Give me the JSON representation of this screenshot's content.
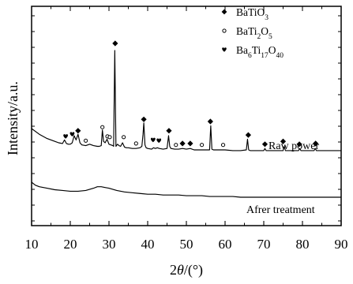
{
  "chart_data": {
    "type": "line",
    "xlabel_parts": {
      "main": "2",
      "theta": "θ",
      "unit": "/(°)"
    },
    "ylabel": "Intensity/a.u.",
    "xlim": [
      10,
      90
    ],
    "xticks": [
      10,
      20,
      30,
      40,
      50,
      60,
      70,
      80,
      90
    ],
    "series": [
      {
        "name": "Raw power",
        "x": [
          10,
          12,
          14,
          16,
          17,
          18,
          18.5,
          19,
          19.5,
          20,
          20.5,
          21,
          21.5,
          22,
          22.5,
          23,
          24,
          25,
          26,
          27,
          27.5,
          28,
          28.3,
          28.6,
          29,
          29.5,
          30,
          30.5,
          31,
          31.2,
          31.5,
          31.8,
          32.2,
          32.6,
          33,
          33.5,
          34,
          34.5,
          35,
          36,
          37,
          38,
          38.5,
          38.8,
          39,
          39.3,
          39.6,
          40,
          41,
          41.5,
          42,
          42.5,
          43,
          44,
          45,
          45.4,
          45.7,
          46,
          47,
          48,
          49,
          50,
          51,
          52,
          54,
          55,
          56,
          56.3,
          56.6,
          57,
          58,
          60,
          62,
          64,
          65.5,
          65.8,
          66.1,
          66.5,
          68,
          70,
          70.3,
          70.6,
          72,
          74,
          75,
          75.3,
          75.6,
          77,
          79,
          79.3,
          79.6,
          81,
          83,
          83.3,
          83.6,
          85,
          87,
          90
        ],
        "values": [
          100,
          92,
          86,
          82,
          80,
          79,
          84,
          79,
          78,
          78,
          80,
          90,
          84,
          92,
          80,
          77,
          76,
          78,
          76,
          75,
          75,
          76,
          98,
          82,
          80,
          85,
          78,
          77,
          76,
          75,
          210,
          75,
          78,
          76,
          75,
          80,
          74,
          73,
          73,
          72,
          72,
          73,
          75,
          92,
          108,
          77,
          73,
          72,
          71,
          73,
          72,
          73,
          72,
          71,
          72,
          90,
          75,
          72,
          71,
          71,
          72,
          71,
          72,
          70,
          70,
          70,
          70,
          104,
          71,
          70,
          70,
          70,
          69,
          69,
          70,
          85,
          70,
          69,
          69,
          69,
          72,
          69,
          69,
          69,
          69,
          75,
          69,
          69,
          69,
          72,
          69,
          69,
          69,
          72,
          69,
          69,
          69,
          69
        ]
      },
      {
        "name": "Afrer treatment",
        "x": [
          10,
          11,
          12,
          14,
          16,
          18,
          20,
          22,
          24,
          26,
          27,
          28,
          29,
          30,
          32,
          34,
          36,
          38,
          40,
          42,
          44,
          46,
          48,
          50,
          52,
          54,
          56,
          58,
          60,
          62,
          64,
          66,
          68,
          70,
          72,
          74,
          76,
          78,
          80,
          82,
          84,
          86,
          88,
          90
        ],
        "values": [
          34,
          30,
          28,
          26,
          24,
          23,
          22,
          22,
          23,
          26,
          28,
          28,
          27,
          26,
          23,
          21,
          20,
          19,
          18,
          18,
          17,
          17,
          17,
          16,
          16,
          16,
          15,
          15,
          15,
          15,
          14,
          14,
          14,
          14,
          14,
          14,
          14,
          14,
          14,
          14,
          14,
          14,
          14,
          14
        ]
      }
    ],
    "markers": [
      {
        "type": "diamond",
        "x": 31.6,
        "y": 220
      },
      {
        "type": "diamond",
        "x": 22.0,
        "y": 97
      },
      {
        "type": "diamond",
        "x": 39.0,
        "y": 113
      },
      {
        "type": "diamond",
        "x": 45.5,
        "y": 97
      },
      {
        "type": "diamond",
        "x": 56.2,
        "y": 110
      },
      {
        "type": "diamond",
        "x": 49.0,
        "y": 79
      },
      {
        "type": "diamond",
        "x": 51.0,
        "y": 79
      },
      {
        "type": "diamond",
        "x": 66.0,
        "y": 91
      },
      {
        "type": "diamond",
        "x": 70.3,
        "y": 78
      },
      {
        "type": "diamond",
        "x": 75.0,
        "y": 82
      },
      {
        "type": "diamond",
        "x": 79.2,
        "y": 78
      },
      {
        "type": "diamond",
        "x": 83.4,
        "y": 79
      },
      {
        "type": "circle",
        "x": 24.0,
        "y": 83
      },
      {
        "type": "circle",
        "x": 28.3,
        "y": 102
      },
      {
        "type": "circle",
        "x": 29.6,
        "y": 89
      },
      {
        "type": "circle",
        "x": 30.2,
        "y": 88
      },
      {
        "type": "circle",
        "x": 33.8,
        "y": 88
      },
      {
        "type": "circle",
        "x": 37.0,
        "y": 79
      },
      {
        "type": "circle",
        "x": 47.3,
        "y": 77
      },
      {
        "type": "circle",
        "x": 54.0,
        "y": 77
      },
      {
        "type": "circle",
        "x": 59.5,
        "y": 77
      },
      {
        "type": "heart",
        "x": 18.8,
        "y": 89
      },
      {
        "type": "heart",
        "x": 20.5,
        "y": 92
      },
      {
        "type": "heart",
        "x": 41.4,
        "y": 84
      },
      {
        "type": "heart",
        "x": 42.9,
        "y": 83
      }
    ],
    "legend": {
      "placement": "top-right",
      "items": [
        {
          "symbol": "diamond",
          "base": "BaTiO",
          "sub": "3"
        },
        {
          "symbol": "circle",
          "base": "BaTi",
          "sub": "2",
          "after": "O",
          "sub2": "5"
        },
        {
          "symbol": "heart",
          "base": "Ba",
          "sub": "6",
          "after": "Ti",
          "sub2": "17",
          "after2": "O",
          "sub3": "40"
        }
      ]
    },
    "series_labels": {
      "raw": "Raw power",
      "treated": "Afrer treatment"
    }
  }
}
